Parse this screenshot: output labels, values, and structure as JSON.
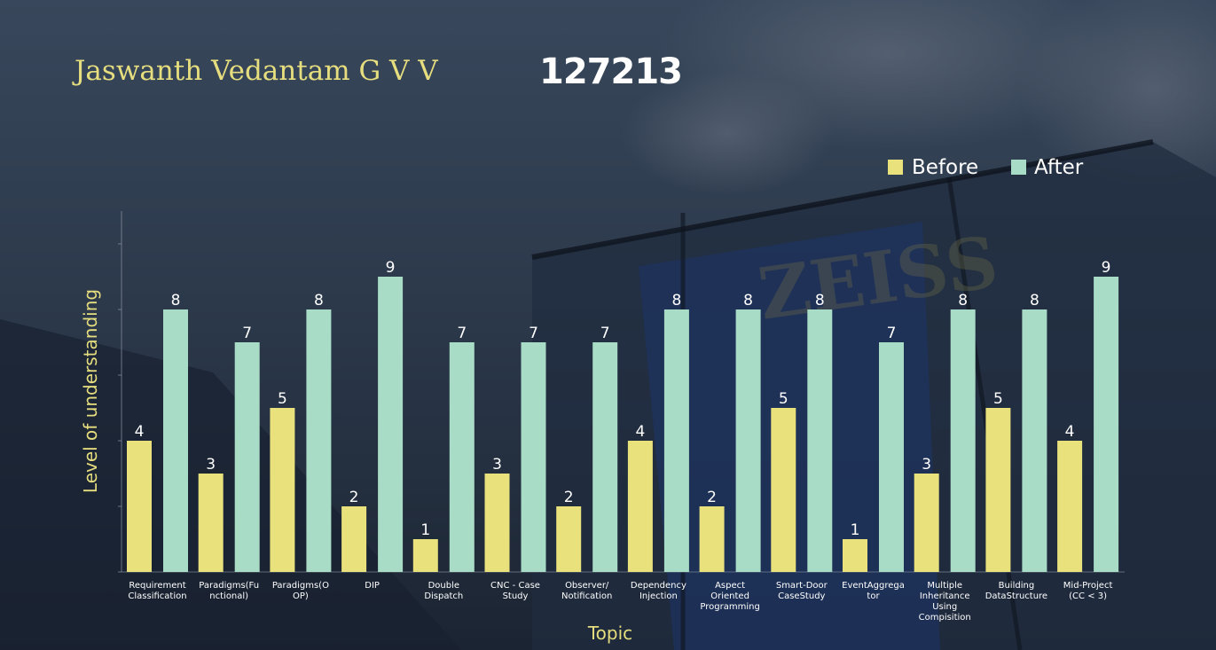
{
  "slide": {
    "name": "Jaswanth Vedantam G V V",
    "id": "127213"
  },
  "colors": {
    "before": "#e8e17c",
    "after": "#a9dcc6",
    "axis_title": "#e6de7e",
    "label": "#ffffff"
  },
  "chart_data": {
    "type": "bar",
    "title": "",
    "xlabel": "Topic",
    "ylabel": "Level of understanding",
    "ylim": [
      0,
      11
    ],
    "grid": false,
    "legend_position": "top-right",
    "categories": [
      [
        "Requirement",
        "Classification"
      ],
      [
        "Paradigms(Fu",
        "nctional)"
      ],
      [
        "Paradigms(O",
        "OP)"
      ],
      [
        "DIP"
      ],
      [
        "Double",
        "Dispatch"
      ],
      [
        "CNC - Case",
        "Study"
      ],
      [
        "Observer/",
        "Notification"
      ],
      [
        "Dependency",
        "Injection"
      ],
      [
        "Aspect",
        "Oriented",
        "Programming"
      ],
      [
        "Smart-Door",
        "CaseStudy"
      ],
      [
        "EventAggrega",
        "tor"
      ],
      [
        "Multiple",
        "Inheritance",
        "Using",
        "Compisition"
      ],
      [
        "Building",
        "DataStructure"
      ],
      [
        "Mid-Project",
        "(CC < 3)"
      ]
    ],
    "series": [
      {
        "name": "Before",
        "values": [
          4,
          3,
          5,
          2,
          1,
          3,
          2,
          4,
          2,
          5,
          1,
          3,
          5,
          4
        ]
      },
      {
        "name": "After",
        "values": [
          8,
          7,
          8,
          9,
          7,
          7,
          7,
          8,
          8,
          8,
          7,
          8,
          8,
          9
        ]
      }
    ]
  }
}
